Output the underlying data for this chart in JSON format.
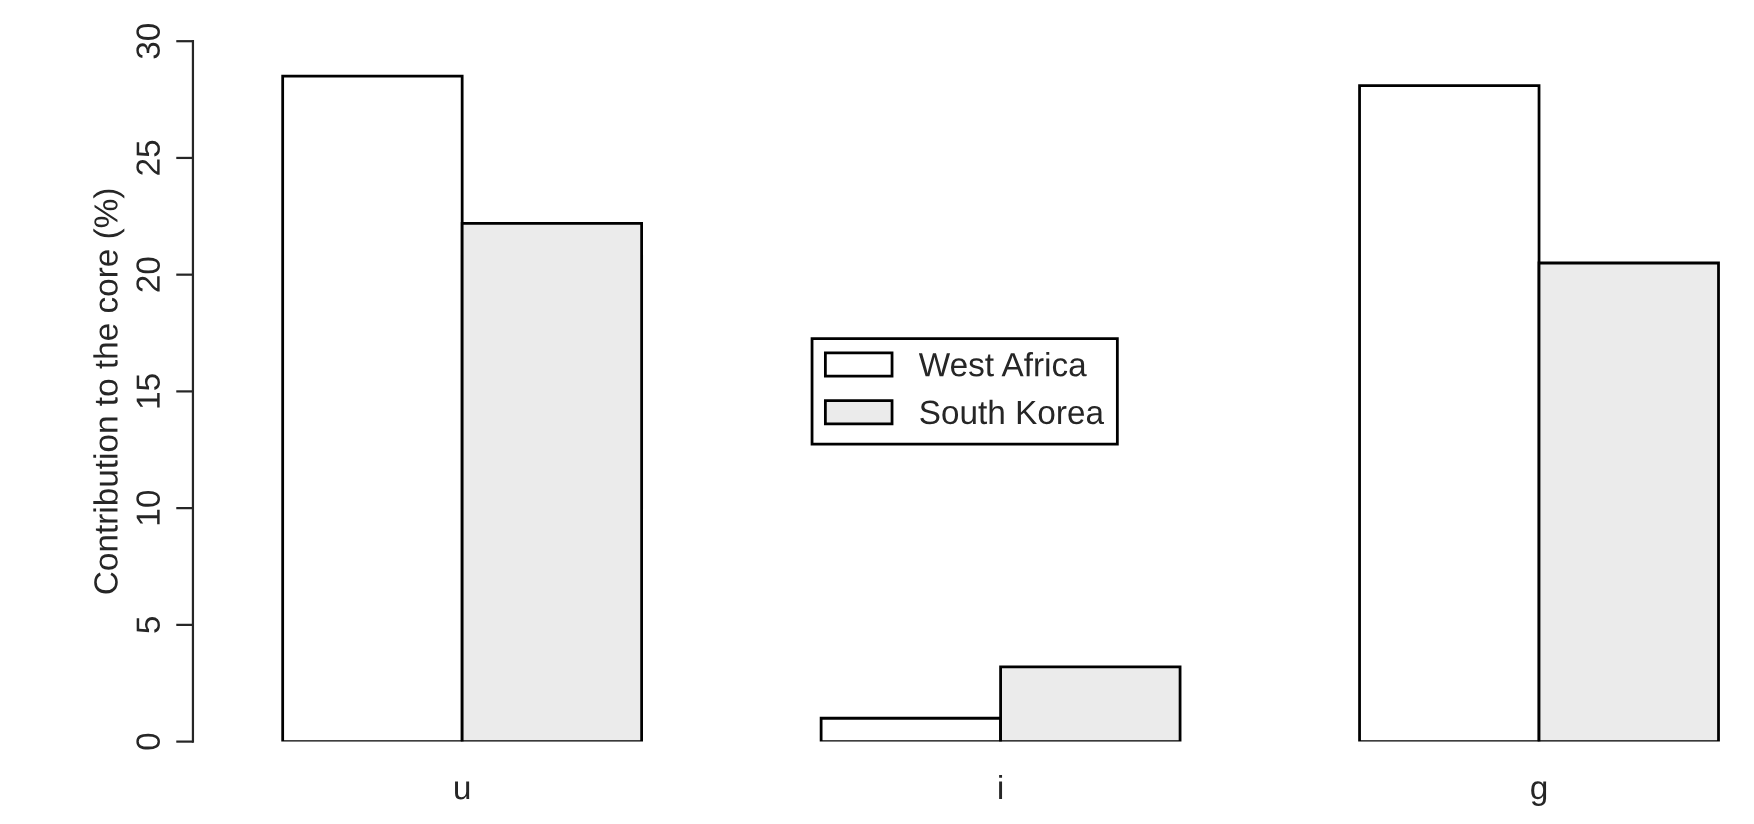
{
  "chart_data": {
    "type": "bar",
    "ylabel": "Contribution to the core (%)",
    "categories": [
      "u",
      "i",
      "g"
    ],
    "series": [
      {
        "name": "West Africa",
        "color": "#ffffff",
        "values": [
          28.5,
          1.0,
          28.1
        ]
      },
      {
        "name": "South Korea",
        "color": "#ebebeb",
        "values": [
          22.2,
          3.2,
          20.5
        ]
      }
    ],
    "ylim": [
      0,
      30
    ],
    "yticks": [
      0,
      5,
      10,
      15,
      20,
      25,
      30
    ],
    "legend": "center",
    "grid": false
  }
}
